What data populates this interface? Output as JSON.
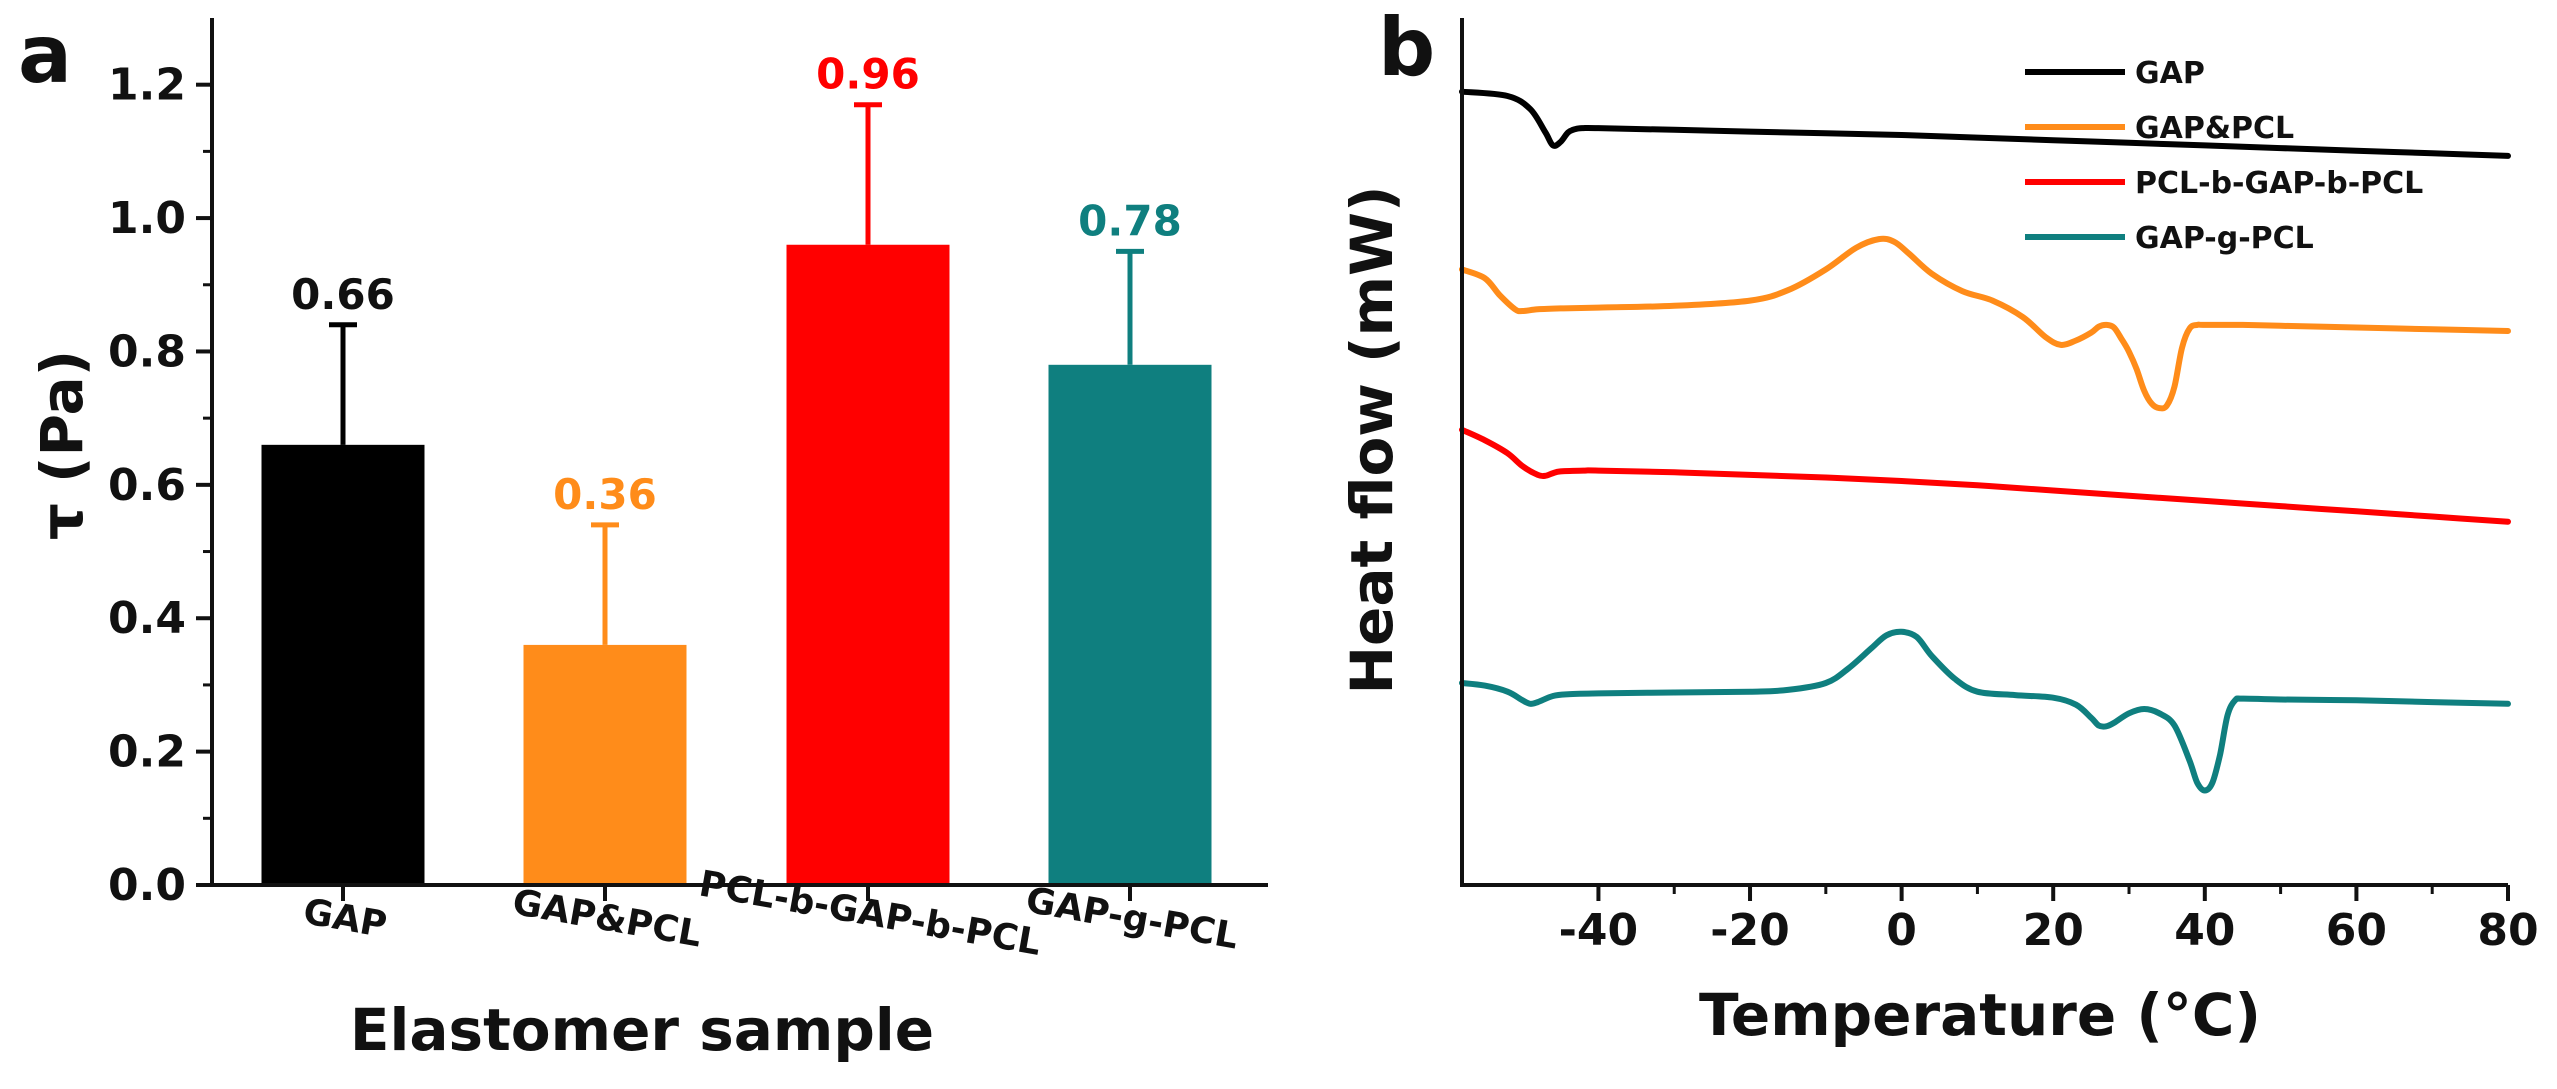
{
  "chart_data": [
    {
      "panel": "a",
      "type": "bar",
      "xlabel": "Elastomer sample",
      "ylabel": "τ (Pa)",
      "ylim": [
        0,
        1.3
      ],
      "yticks": [
        "0.0",
        "0.2",
        "0.4",
        "0.6",
        "0.8",
        "1.0",
        "1.2"
      ],
      "categories": [
        "GAP",
        "GAP&PCL",
        "PCL-b-GAP-b-PCL",
        "GAP-g-PCL"
      ],
      "values": [
        0.66,
        0.36,
        0.96,
        0.78
      ],
      "value_labels": [
        "0.66",
        "0.36",
        "0.96",
        "0.78"
      ],
      "error_tops": [
        0.84,
        0.54,
        1.17,
        0.95
      ],
      "colors": [
        "#000000",
        "#ff8c1a",
        "#ff0000",
        "#0f7f7f"
      ],
      "label_colors": [
        "#111111",
        "#ff8c1a",
        "#ff0000",
        "#0f7f7f"
      ]
    },
    {
      "panel": "b",
      "type": "line",
      "xlabel": "Temperature (°C)",
      "ylabel": "Heat flow (mW)",
      "xlim": [
        -58,
        80
      ],
      "xticks": [
        "-40",
        "-20",
        "0",
        "20",
        "40",
        "60",
        "80"
      ],
      "xtick_values": [
        -40,
        -20,
        0,
        20,
        40,
        60,
        80
      ],
      "ylim": [
        0,
        100
      ],
      "legend_position": "top-right",
      "series": [
        {
          "name": "GAP",
          "color": "#000000",
          "x": [
            -58,
            -52,
            -49,
            -47,
            -46,
            -45,
            -44,
            -43,
            -42,
            -40,
            -30,
            -20,
            -10,
            0,
            10,
            20,
            30,
            40,
            50,
            60,
            70,
            80
          ],
          "y": [
            91.5,
            91,
            89.5,
            86.8,
            85.3,
            85.7,
            86.8,
            87.2,
            87.3,
            87.3,
            87.1,
            86.9,
            86.7,
            86.5,
            86.2,
            85.9,
            85.6,
            85.3,
            85.0,
            84.7,
            84.4,
            84.1
          ]
        },
        {
          "name": "GAP&PCL",
          "color": "#ff8c1a",
          "x": [
            -58,
            -55,
            -53,
            -51,
            -50,
            -48,
            -45,
            -40,
            -30,
            -20,
            -15,
            -10,
            -6,
            -3,
            -1,
            1,
            4,
            8,
            12,
            16,
            19,
            21,
            23,
            25,
            26,
            27,
            28,
            29,
            30,
            31,
            32,
            33,
            34,
            35,
            36,
            37,
            38,
            39,
            40,
            45,
            50,
            60,
            70,
            80
          ],
          "y": [
            71,
            70,
            68,
            66.4,
            66.2,
            66.4,
            66.5,
            66.6,
            66.8,
            67.4,
            68.6,
            71,
            73.5,
            74.5,
            74.2,
            72.8,
            70.5,
            68.5,
            67.4,
            65.5,
            63.2,
            62.3,
            62.8,
            63.7,
            64.4,
            64.6,
            64.3,
            63,
            61.5,
            59.5,
            57,
            55.5,
            55,
            55.3,
            57.5,
            62,
            64.2,
            64.6,
            64.6,
            64.6,
            64.5,
            64.3,
            64.1,
            63.9
          ]
        },
        {
          "name": "PCL-b-GAP-b-PCL",
          "color": "#ff0000",
          "x": [
            -58,
            -55,
            -52,
            -50,
            -48,
            -47,
            -46,
            -45,
            -42,
            -40,
            -30,
            -20,
            -10,
            0,
            10,
            20,
            30,
            40,
            50,
            60,
            70,
            80
          ],
          "y": [
            52.5,
            51.3,
            49.8,
            48.3,
            47.3,
            47.2,
            47.5,
            47.7,
            47.8,
            47.8,
            47.6,
            47.3,
            47.0,
            46.6,
            46.1,
            45.5,
            44.9,
            44.3,
            43.7,
            43.1,
            42.5,
            41.9
          ]
        },
        {
          "name": "GAP-g-PCL",
          "color": "#0f7f7f",
          "x": [
            -58,
            -55,
            -52,
            -50,
            -49,
            -48,
            -46,
            -44,
            -40,
            -30,
            -20,
            -15,
            -10,
            -7,
            -4,
            -2,
            0,
            2,
            4,
            7,
            10,
            15,
            20,
            23,
            25,
            26,
            27,
            28,
            30,
            32,
            34,
            36,
            38,
            39,
            40,
            41,
            42,
            43,
            44,
            45,
            50,
            60,
            70,
            80
          ],
          "y": [
            23.3,
            23,
            22.3,
            21.3,
            20.9,
            21.1,
            21.8,
            22,
            22.1,
            22.2,
            22.3,
            22.5,
            23.3,
            25,
            27.3,
            28.8,
            29.2,
            28.6,
            26.4,
            23.8,
            22.3,
            21.9,
            21.6,
            20.8,
            19.3,
            18.4,
            18.3,
            18.7,
            19.8,
            20.3,
            19.8,
            18.4,
            14.3,
            11.8,
            10.9,
            11.8,
            15,
            19.6,
            21.3,
            21.5,
            21.4,
            21.3,
            21.1,
            20.9
          ]
        }
      ]
    }
  ]
}
